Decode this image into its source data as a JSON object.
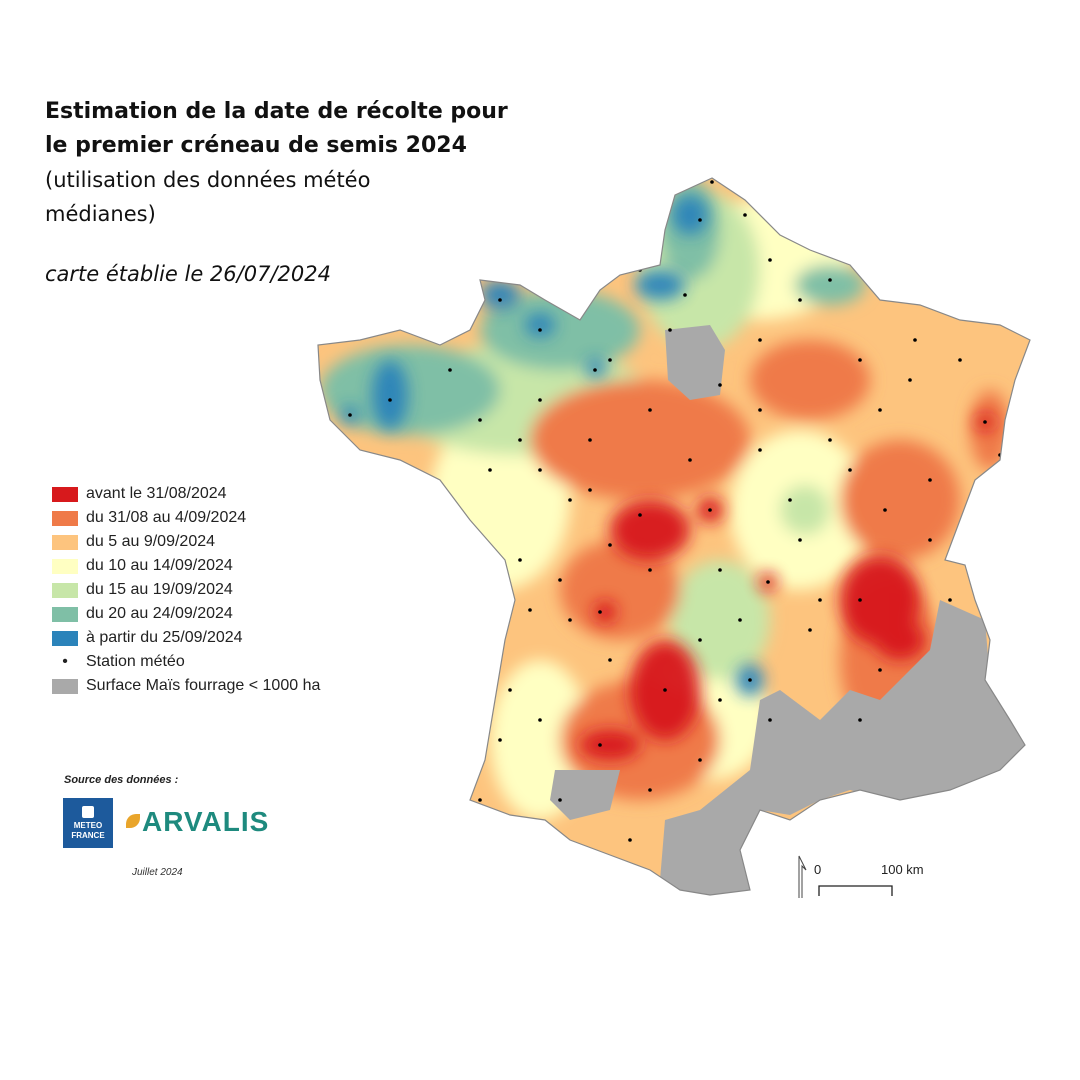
{
  "title": {
    "line1": "Estimation de la date de récolte pour",
    "line2": "le premier créneau de semis 2024",
    "line3": "(utilisation des données météo",
    "line4": "médianes)"
  },
  "date_note": "carte établie le 26/07/2024",
  "legend": [
    {
      "label": "avant le 31/08/2024",
      "color": "#d7191c"
    },
    {
      "label": "du 31/08 au 4/09/2024",
      "color": "#ef7a48"
    },
    {
      "label": "du 5 au 9/09/2024",
      "color": "#fdc47e"
    },
    {
      "label": "du 10 au 14/09/2024",
      "color": "#ffffc2"
    },
    {
      "label": "du 15 au 19/09/2024",
      "color": "#c7e6a8"
    },
    {
      "label": "du 20 au 24/09/2024",
      "color": "#7fbfa6"
    },
    {
      "label": "à partir du 25/09/2024",
      "color": "#2b83ba"
    },
    {
      "label": "Station météo",
      "symbol": "dot"
    },
    {
      "label": "Surface Maïs fourrage < 1000 ha",
      "color": "#a9a9a9"
    }
  ],
  "source": {
    "label": "Source des données :",
    "meteo_line1": "METEO",
    "meteo_line2": "FRANCE",
    "arvalis": "ARVALIS",
    "month": "Juillet 2024"
  },
  "scale": {
    "zero": "0",
    "end": "100 km"
  }
}
